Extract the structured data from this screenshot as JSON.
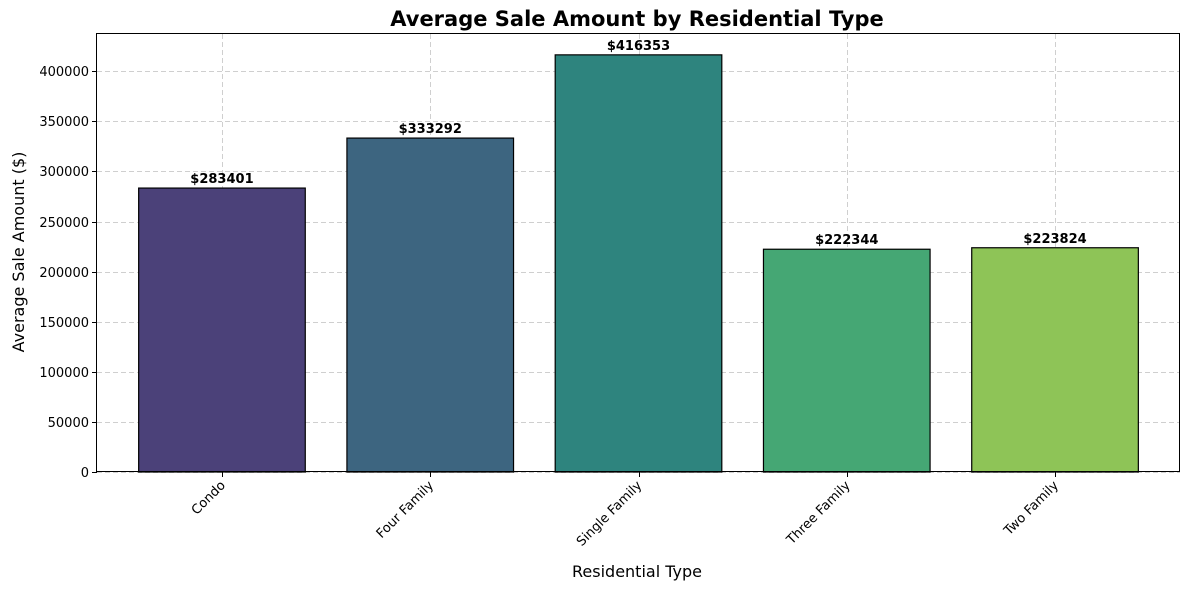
{
  "chart_data": {
    "type": "bar",
    "title": "Average Sale Amount by Residential Type",
    "xlabel": "Residential Type",
    "ylabel": "Average Sale Amount ($)",
    "categories": [
      "Condo",
      "Four Family",
      "Single Family",
      "Three Family",
      "Two Family"
    ],
    "values": [
      283401,
      333292,
      416353,
      222344,
      223824
    ],
    "data_labels": [
      "$283401",
      "$333292",
      "$416353",
      "$222344",
      "$223824"
    ],
    "colors": [
      "#4b4179",
      "#3d6580",
      "#2e847e",
      "#45a774",
      "#8ec457"
    ],
    "ylim": [
      0,
      437171
    ],
    "yticks": [
      0,
      50000,
      100000,
      150000,
      200000,
      250000,
      300000,
      350000,
      400000
    ],
    "ytick_labels": [
      "0",
      "50000",
      "100000",
      "150000",
      "200000",
      "250000",
      "300000",
      "350000",
      "400000"
    ],
    "grid": true,
    "xtick_rotation": 45
  }
}
